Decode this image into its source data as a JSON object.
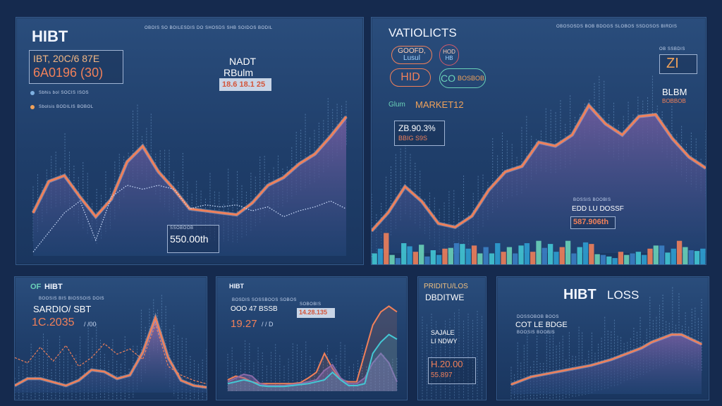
{
  "colors": {
    "background": "#152a4e",
    "panel": "#254777",
    "line_orange": "#f0805a",
    "area_purple": "#6d5b9c",
    "spike_blue": "#7fb0e0",
    "teal": "#43c7d4",
    "text": "#e8eefb"
  },
  "panels": {
    "p1": {
      "title": "HIBT",
      "header_small": "OBOIS SO BOILESDIS DO   SHOSDS SHB SOIDOS BODIL",
      "box_line1": "IBT, 20C/6 87E",
      "box_line2": "6A0196 (30)",
      "legend_item1": "Sbhis bol SOCIS ISOS",
      "legend_item2": "Sbolsis BODILIS BOBOL",
      "label_top": "NADT",
      "label_sub": "RBulm",
      "value_box": "18.6 18.1 25",
      "bottom_label_small": "SSOBOOB",
      "bottom_value": "550.00th"
    },
    "p2": {
      "title": "VATIOLICTS",
      "header_small": "OBOSOSDS BOB BDOGS SLOBOS   SSDOSOS BIRDIS",
      "pill1_line1": "GOOFD,",
      "pill1_line2": "Lusul",
      "pill2_line1": "HOD",
      "pill2_line2": "HB",
      "pill3": "HID",
      "pill4_line1": "CO",
      "pill4_line2": "BOSBOB",
      "market_prefix": "Glum",
      "market_label": "MARKET12",
      "box_value": "ZB.90.3%",
      "box_sub": "BBIG S9S",
      "side_top": "OB SSBDIS",
      "side_icon_text": "ZI",
      "side_mid": "BLBM",
      "side_mid_sub": "BOBBOB",
      "bottom_small": "BOSSIS BOOBIS",
      "bottom_label": "EDD LU DOSSF",
      "bottom_value": "587.906th"
    },
    "p3": {
      "title": "HIBT",
      "title_prefix": "OF",
      "small": "BOOSIS BIS BIOSSOIS DOIS",
      "line1": "SARDIO/ SBT",
      "value": "1C.2035",
      "value_unit": "/ /00"
    },
    "p4": {
      "title": "HIBT",
      "small": "BOSDIS SOSSBOOS SOBOS",
      "line1": "OOO 47 BSSB",
      "value": "19.27",
      "value_unit": "/ / D",
      "box_value": "14.28.135",
      "box_small": "SOBOBIS"
    },
    "p5": {
      "title": "PRIDITU/LOS",
      "subtitle": "DBDITWE",
      "line1": "SAJALE",
      "line2": "LI NDWY",
      "value": "H.20.00",
      "value2": "55.897"
    },
    "p6": {
      "title": "HIBT",
      "title2": "LOSS",
      "small": "DOSSOBOB BOOS",
      "line1": "COT LE BDGE",
      "line2": "BOOSIS BOOBIS"
    }
  },
  "chart_data": [
    {
      "type": "area",
      "panel": "p1",
      "x": [
        0,
        1,
        2,
        3,
        4,
        5,
        6,
        7,
        8,
        9,
        10,
        11,
        12,
        13,
        14,
        15,
        16,
        17,
        18,
        19,
        20
      ],
      "series": [
        {
          "values": [
            22,
            38,
            41,
            30,
            20,
            29,
            48,
            56,
            43,
            34,
            24,
            23,
            22,
            21,
            27,
            36,
            40,
            47,
            52,
            61,
            71
          ]
        },
        {
          "values": [
            2,
            12,
            22,
            28,
            8,
            30,
            36,
            34,
            36,
            34,
            24,
            26,
            25,
            26,
            23,
            25,
            20,
            23,
            25,
            28,
            24
          ]
        }
      ],
      "ylim": [
        0,
        100
      ]
    },
    {
      "type": "area",
      "panel": "p2",
      "x": [
        0,
        1,
        2,
        3,
        4,
        5,
        6,
        7,
        8,
        9,
        10,
        11,
        12,
        13,
        14,
        15,
        16,
        17,
        18,
        19,
        20
      ],
      "series": [
        {
          "values": [
            12,
            22,
            36,
            28,
            16,
            14,
            20,
            34,
            44,
            47,
            60,
            58,
            64,
            80,
            70,
            64,
            74,
            75,
            62,
            52,
            46
          ]
        }
      ],
      "ylim": [
        0,
        100
      ]
    },
    {
      "type": "bar",
      "panel": "p2",
      "values": [
        14,
        20,
        40,
        12,
        8,
        27,
        23,
        16,
        25,
        10,
        18,
        12,
        20,
        21,
        27,
        26,
        20,
        24,
        14,
        22,
        14,
        27,
        16,
        22,
        14,
        24,
        27,
        16,
        30,
        21,
        26,
        16,
        22,
        30,
        14,
        22,
        28,
        26,
        13,
        12,
        10,
        8,
        16,
        12,
        14,
        16,
        12,
        20,
        24,
        24,
        15,
        20,
        30,
        22,
        18,
        17,
        20
      ],
      "ylim": [
        0,
        45
      ]
    },
    {
      "type": "area",
      "panel": "p3",
      "x": [
        0,
        1,
        2,
        3,
        4,
        5,
        6,
        7,
        8,
        9,
        10,
        11,
        12,
        13,
        14,
        15
      ],
      "series": [
        {
          "values": [
            8,
            16,
            16,
            12,
            8,
            14,
            26,
            24,
            16,
            20,
            46,
            86,
            40,
            14,
            8,
            6
          ]
        },
        {
          "values": [
            40,
            34,
            52,
            36,
            54,
            30,
            40,
            56,
            44,
            50,
            38,
            78,
            30,
            20,
            14,
            10
          ]
        }
      ],
      "ylim": [
        0,
        100
      ]
    },
    {
      "type": "line",
      "panel": "p4",
      "x": [
        0,
        1,
        2,
        3,
        4,
        5,
        6,
        7,
        8,
        9,
        10,
        11,
        12,
        13,
        14,
        15,
        16,
        17,
        18,
        19,
        20,
        21
      ],
      "series": [
        {
          "values": [
            12,
            16,
            14,
            10,
            8,
            8,
            8,
            8,
            8,
            9,
            14,
            20,
            40,
            24,
            12,
            10,
            10,
            40,
            70,
            84,
            90,
            84
          ]
        },
        {
          "values": [
            10,
            14,
            18,
            16,
            8,
            6,
            6,
            6,
            7,
            8,
            10,
            12,
            22,
            28,
            14,
            8,
            8,
            14,
            30,
            40,
            30,
            10
          ]
        },
        {
          "values": [
            8,
            10,
            12,
            10,
            6,
            5,
            5,
            5,
            6,
            7,
            8,
            10,
            12,
            20,
            12,
            6,
            6,
            8,
            40,
            52,
            60,
            55
          ]
        }
      ],
      "ylim": [
        0,
        100
      ]
    },
    {
      "type": "area",
      "panel": "p6",
      "x": [
        0,
        1,
        2,
        3,
        4,
        5,
        6,
        7,
        8,
        9,
        10,
        11,
        12,
        13,
        14,
        15,
        16,
        17,
        18,
        19
      ],
      "series": [
        {
          "values": [
            10,
            14,
            18,
            20,
            22,
            24,
            26,
            28,
            30,
            33,
            36,
            40,
            44,
            48,
            54,
            58,
            62,
            62,
            57,
            52
          ]
        }
      ],
      "ylim": [
        0,
        100
      ]
    }
  ]
}
